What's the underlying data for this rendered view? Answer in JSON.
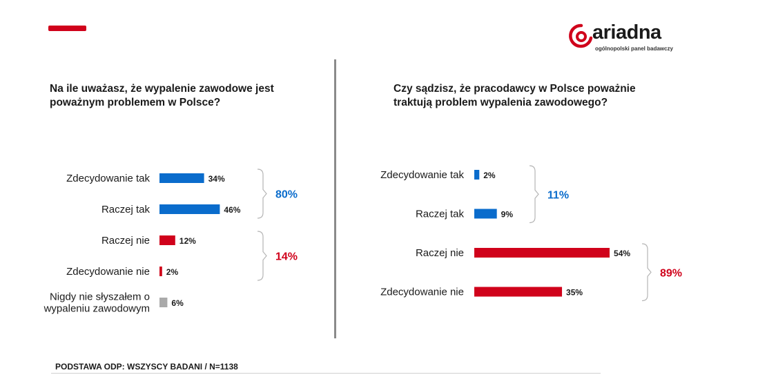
{
  "brand": {
    "logo_text": "ariadna",
    "tagline": "ogólnopolski panel badawczy",
    "colors": {
      "accent": "#d0021b",
      "blue": "#0a6ccc",
      "red": "#d0021b",
      "gray": "#aaaaaa",
      "divider": "#8a8a8a"
    }
  },
  "footer": {
    "text": "PODSTAWA ODP: WSZYSCY BADANI / N=1138"
  },
  "chart_data": [
    {
      "type": "bar",
      "orientation": "horizontal",
      "title": "Na ile uważasz, że wypalenie zawodowe jest poważnym problemem w Polsce?",
      "title_lines": [
        "Na ile uważasz, że wypalenie zawodowe jest",
        "poważnym problemem w Polsce?"
      ],
      "categories": [
        [
          "Zdecydowanie tak"
        ],
        [
          "Raczej tak"
        ],
        [
          "Raczej nie"
        ],
        [
          "Zdecydowanie nie"
        ],
        [
          "Nigdy nie słyszałem o",
          "wypaleniu zawodowym"
        ]
      ],
      "values": [
        34,
        46,
        12,
        2,
        6
      ],
      "value_labels": [
        "34%",
        "46%",
        "12%",
        "2%",
        "6%"
      ],
      "colors": [
        "#0a6ccc",
        "#0a6ccc",
        "#d0021b",
        "#d0021b",
        "#aaaaaa"
      ],
      "xlim": [
        0,
        100
      ],
      "groups": [
        {
          "from": 0,
          "to": 1,
          "label": "80%",
          "color": "#0a6ccc"
        },
        {
          "from": 2,
          "to": 3,
          "label": "14%",
          "color": "#d0021b"
        }
      ]
    },
    {
      "type": "bar",
      "orientation": "horizontal",
      "title": "Czy sądzisz, że pracodawcy w Polsce poważnie traktują problem wypalenia zawodowego?",
      "title_lines": [
        "Czy sądzisz, że pracodawcy w Polsce poważnie",
        "traktują problem wypalenia zawodowego?"
      ],
      "categories": [
        [
          "Zdecydowanie tak"
        ],
        [
          "Raczej tak"
        ],
        [
          "Raczej nie"
        ],
        [
          "Zdecydowanie nie"
        ]
      ],
      "values": [
        2,
        9,
        54,
        35
      ],
      "value_labels": [
        "2%",
        "9%",
        "54%",
        "35%"
      ],
      "colors": [
        "#0a6ccc",
        "#0a6ccc",
        "#d0021b",
        "#d0021b"
      ],
      "xlim": [
        0,
        100
      ],
      "groups": [
        {
          "from": 0,
          "to": 1,
          "label": "11%",
          "color": "#0a6ccc"
        },
        {
          "from": 2,
          "to": 3,
          "label": "89%",
          "color": "#d0021b"
        }
      ]
    }
  ]
}
